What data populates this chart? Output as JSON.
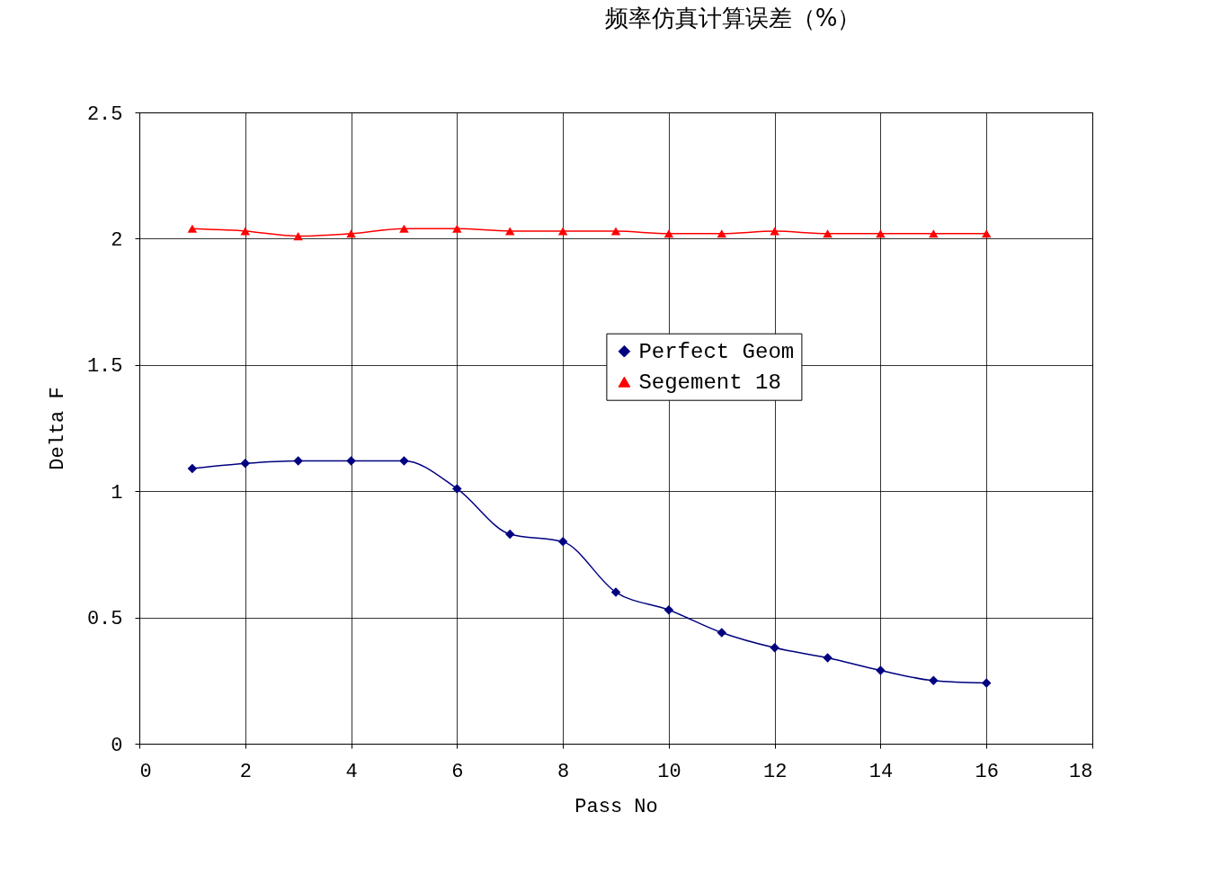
{
  "chart_data": {
    "type": "line",
    "title": "频率仿真计算误差（%）",
    "xlabel": "Pass No",
    "ylabel": "Delta F",
    "x": [
      1,
      2,
      3,
      4,
      5,
      6,
      7,
      8,
      9,
      10,
      11,
      12,
      13,
      14,
      15,
      16
    ],
    "series": [
      {
        "name": "Perfect Geom",
        "color": "#000080",
        "marker": "diamond",
        "values": [
          1.09,
          1.11,
          1.12,
          1.12,
          1.12,
          1.01,
          0.83,
          0.8,
          0.6,
          0.53,
          0.44,
          0.38,
          0.34,
          0.29,
          0.25,
          0.24
        ]
      },
      {
        "name": "Segement 18",
        "color": "#ff0000",
        "marker": "triangle",
        "values": [
          2.04,
          2.03,
          2.01,
          2.02,
          2.04,
          2.04,
          2.03,
          2.03,
          2.03,
          2.02,
          2.02,
          2.03,
          2.02,
          2.02,
          2.02,
          2.02
        ]
      }
    ],
    "xlim": [
      0,
      18
    ],
    "xticks": [
      0,
      2,
      4,
      6,
      8,
      10,
      12,
      14,
      16,
      18
    ],
    "ylim": [
      0,
      2.5
    ],
    "yticks": [
      0,
      0.5,
      1,
      1.5,
      2,
      2.5
    ],
    "grid": true,
    "legend": "right",
    "line_style": "solid"
  }
}
